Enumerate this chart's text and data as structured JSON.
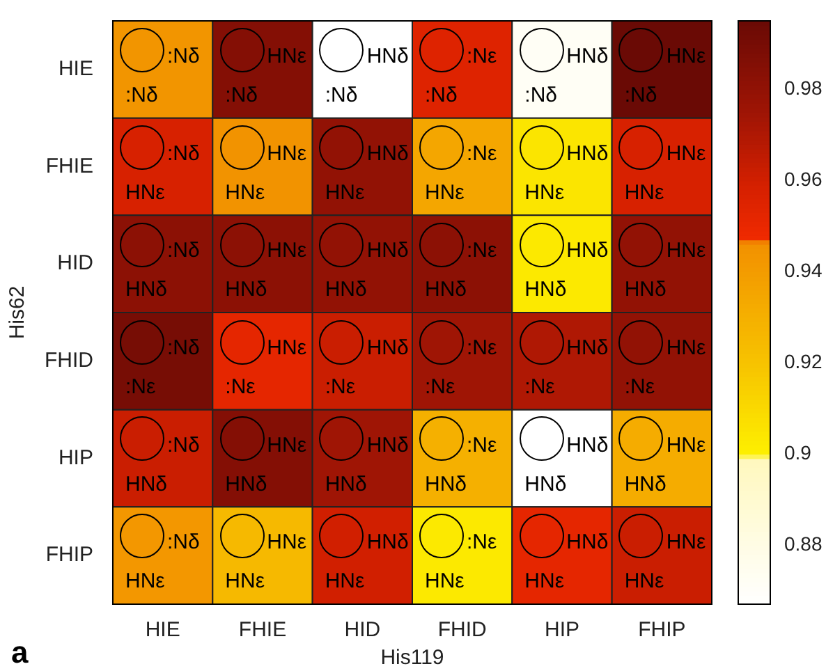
{
  "chart_data": {
    "type": "heatmap",
    "xlabel": "His119",
    "ylabel": "His62",
    "categories": [
      "HIE",
      "FHIE",
      "HID",
      "FHID",
      "HIP",
      "FHIP"
    ],
    "y_categories": [
      "HIE",
      "FHIE",
      "HID",
      "FHID",
      "HIP",
      "FHIP"
    ],
    "cells": [
      [
        0.944,
        0.985,
        0.867,
        0.955,
        0.872,
        0.995
      ],
      [
        0.958,
        0.945,
        0.98,
        0.935,
        0.905,
        0.958
      ],
      [
        0.982,
        0.982,
        0.98,
        0.982,
        0.903,
        0.98
      ],
      [
        0.99,
        0.952,
        0.962,
        0.975,
        0.97,
        0.98
      ],
      [
        0.962,
        0.985,
        0.975,
        0.93,
        0.867,
        0.932
      ],
      [
        0.943,
        0.925,
        0.96,
        0.903,
        0.952,
        0.962
      ]
    ],
    "cell_labels": [
      [
        ":Nδ\n:Nδ",
        "HNε\n:Nδ",
        "HNδ\n:Nδ",
        ":Nε\n:Nδ",
        "HNδ\n:Nδ",
        "HNε\n:Nδ"
      ],
      [
        ":Nδ\nHNε",
        "HNε\nHNε",
        "HNδ\nHNε",
        ":Nε\nHNε",
        "HNδ\nHNε",
        "HNε\nHNε"
      ],
      [
        ":Nδ\nHNδ",
        "HNε\nHNδ",
        "HNδ\nHNδ",
        ":Nε\nHNδ",
        "HNδ\nHNδ",
        "HNε\nHNδ"
      ],
      [
        ":Nδ\n:Nε",
        "HNε\n:Nε",
        "HNδ\n:Nε",
        ":Nε\n:Nε",
        "HNδ\n:Nε",
        "HNε\n:Nε"
      ],
      [
        ":Nδ\nHNδ",
        "HNε\nHNδ",
        "HNδ\nHNδ",
        ":Nε\nHNδ",
        "HNδ\nHNδ",
        "HNε\nHNδ"
      ],
      [
        ":Nδ\nHNε",
        "HNε\nHNε",
        "HNδ\nHNε",
        ":Nε\nHNε",
        "HNδ\nHNε",
        "HNε\nHNε"
      ]
    ],
    "clim": [
      0.867,
      0.995
    ],
    "cticks": [
      0.88,
      0.9,
      0.92,
      0.94,
      0.96,
      0.98
    ],
    "annotations": [
      "a"
    ]
  }
}
